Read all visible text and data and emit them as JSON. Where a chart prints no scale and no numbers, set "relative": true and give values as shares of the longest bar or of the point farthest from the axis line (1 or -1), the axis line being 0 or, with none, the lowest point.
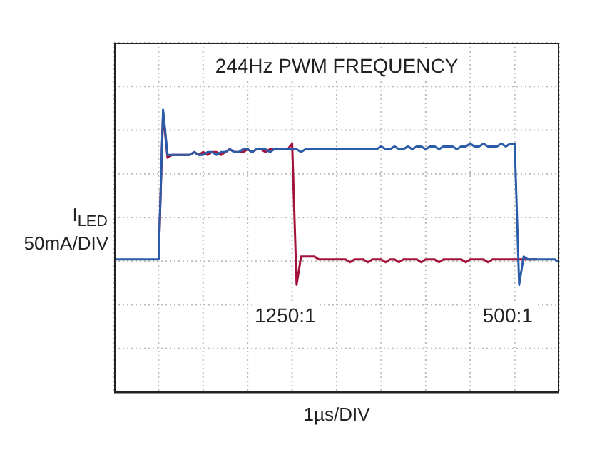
{
  "chart_data": {
    "type": "line",
    "title": "244Hz PWM FREQUENCY",
    "xlabel": "1µs/DIV",
    "ylabel": "I$_{LED}$ 50mA/DIV",
    "relative": true,
    "grid": true,
    "marker": "none",
    "line_style": "solid",
    "categories": [
      null,
      null,
      null,
      null,
      null,
      null,
      null,
      null,
      null,
      null,
      null,
      null,
      null,
      null,
      null,
      null,
      null,
      null,
      null,
      null,
      null,
      null,
      null,
      null,
      null,
      null,
      null,
      null,
      null,
      null,
      null,
      null,
      null,
      null,
      null,
      null,
      null,
      null,
      null,
      null,
      null,
      null,
      null,
      null,
      null,
      null,
      null,
      null,
      null,
      null,
      null,
      null,
      null,
      null,
      null,
      null,
      null,
      null,
      null,
      null,
      null,
      null,
      null,
      null,
      null,
      null,
      null,
      null,
      null,
      null,
      null,
      null,
      null,
      null,
      null,
      null,
      null,
      null,
      null,
      null,
      null,
      null,
      null,
      null,
      null,
      null,
      null,
      null,
      null,
      null,
      null,
      null,
      null,
      null,
      null,
      null,
      null,
      null,
      null,
      null,
      null
    ],
    "series": [
      {
        "name": "1250:1",
        "color": "#a3123a",
        "values": [
          null,
          null,
          null,
          null,
          null,
          null,
          null,
          null,
          null,
          null,
          0.47,
          0.99,
          0.83,
          0.84,
          0.84,
          0.84,
          0.84,
          0.84,
          0.85,
          0.84,
          0.85,
          0.84,
          0.85,
          0.85,
          0.84,
          0.85,
          0.86,
          0.85,
          0.85,
          0.85,
          0.86,
          0.85,
          0.86,
          0.86,
          0.85,
          0.86,
          0.86,
          0.86,
          0.86,
          0.86,
          0.88,
          0.38,
          0.48,
          0.48,
          0.48,
          0.48,
          0.47,
          0.47,
          0.47,
          0.47,
          0.47,
          0.47,
          0.47,
          0.46,
          0.47,
          0.47,
          0.47,
          0.46,
          0.47,
          0.47,
          0.47,
          0.46,
          0.47,
          0.47,
          0.46,
          0.47,
          0.47,
          0.47,
          0.47,
          0.46,
          0.47,
          0.47,
          0.47,
          0.46,
          0.47,
          0.47,
          0.47,
          0.47,
          0.47,
          0.46,
          0.47,
          0.47,
          0.47,
          0.47,
          0.46,
          0.47,
          0.47,
          0.47,
          0.47,
          0.47,
          0.47,
          0.47,
          0.47,
          0.47,
          0.47,
          0.47,
          null,
          null,
          null,
          null,
          null
        ]
      },
      {
        "name": "500:1",
        "color": "#2a5caa",
        "values": [
          0.47,
          0.47,
          0.47,
          0.47,
          0.47,
          0.47,
          0.47,
          0.47,
          0.47,
          0.47,
          0.47,
          1.0,
          0.84,
          0.84,
          0.84,
          0.84,
          0.84,
          0.84,
          0.85,
          0.84,
          0.84,
          0.85,
          0.85,
          0.84,
          0.85,
          0.85,
          0.86,
          0.85,
          0.85,
          0.86,
          0.86,
          0.85,
          0.86,
          0.86,
          0.86,
          0.85,
          0.86,
          0.86,
          0.86,
          0.86,
          0.86,
          0.86,
          0.85,
          0.86,
          0.86,
          0.86,
          0.86,
          0.86,
          0.86,
          0.86,
          0.86,
          0.86,
          0.86,
          0.86,
          0.86,
          0.86,
          0.86,
          0.86,
          0.86,
          0.86,
          0.87,
          0.86,
          0.86,
          0.87,
          0.86,
          0.86,
          0.87,
          0.86,
          0.87,
          0.87,
          0.86,
          0.87,
          0.87,
          0.86,
          0.87,
          0.87,
          0.87,
          0.86,
          0.87,
          0.87,
          0.88,
          0.87,
          0.87,
          0.88,
          0.87,
          0.87,
          0.87,
          0.88,
          0.87,
          0.88,
          0.88,
          0.38,
          0.48,
          0.47,
          0.47,
          0.47,
          0.47,
          0.47,
          0.47,
          0.47,
          0.46
        ]
      }
    ]
  }
}
